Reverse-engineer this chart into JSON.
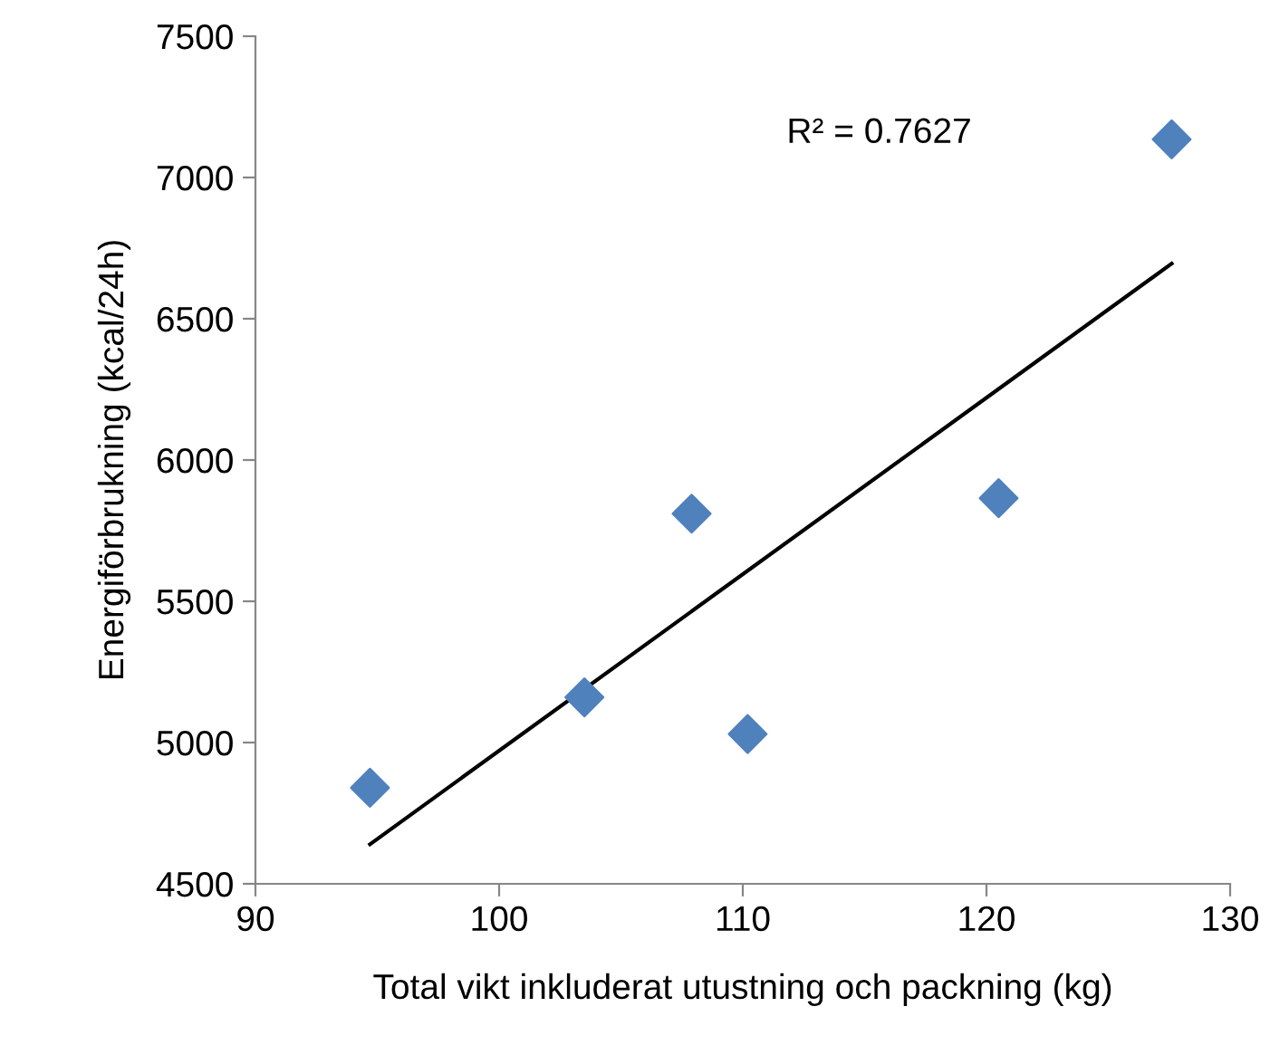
{
  "chart_data": {
    "type": "scatter",
    "xlabel": "Total vikt inkluderat utustning och packning (kg)",
    "ylabel": "Energiförbrukning (kcal/24h)",
    "series": [
      {
        "color": "#4f81bd",
        "marker": "diamond",
        "x": [
          94.7,
          103.5,
          107.9,
          110.2,
          120.5,
          127.6
        ],
        "values": [
          4840,
          5160,
          5810,
          5030,
          5865,
          7135
        ]
      },
      {
        "type": "line",
        "color": "#000000",
        "marker": "none",
        "line_style": "solid",
        "x": [
          94.7,
          127.6
        ],
        "values": [
          4640,
          6695
        ]
      }
    ],
    "annotations": [
      "R² = 0.7627"
    ],
    "xlim": [
      90,
      130
    ],
    "xticks": [
      90,
      100,
      110,
      120,
      130
    ],
    "ylim": [
      4500,
      7500
    ],
    "yticks": [
      4500,
      5000,
      5500,
      6000,
      6500,
      7000,
      7500
    ],
    "grid": false,
    "legend": false
  }
}
